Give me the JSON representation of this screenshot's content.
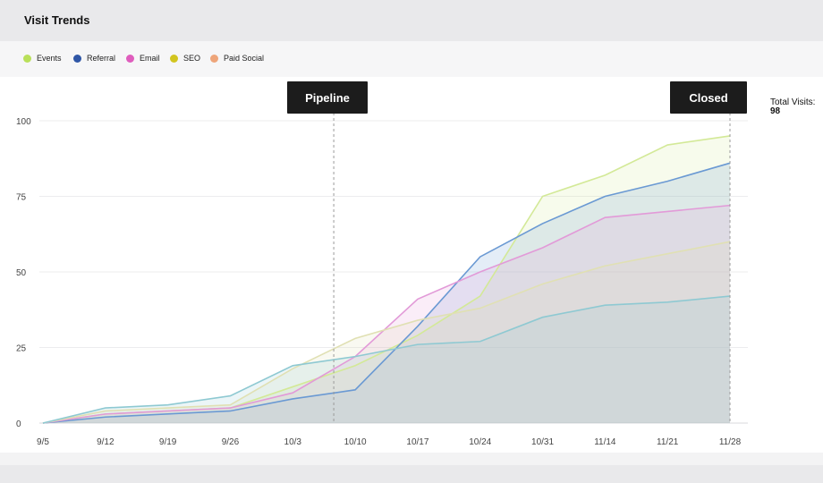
{
  "header": {
    "title": "Visit Trends"
  },
  "legend": [
    {
      "name": "Events",
      "color": "#b9e05a"
    },
    {
      "name": "Referral",
      "color": "#2f56a6"
    },
    {
      "name": "Email",
      "color": "#df5dbd"
    },
    {
      "name": "SEO",
      "color": "#d2c520"
    },
    {
      "name": "Paid Social",
      "color": "#eea57a"
    }
  ],
  "total": {
    "label": "Total Visits:",
    "value": "98"
  },
  "markers": [
    {
      "label": "Pipeline",
      "x": "10/10"
    },
    {
      "label": "Closed",
      "x": "11/28"
    }
  ],
  "chart_data": {
    "type": "area",
    "title": "Visit Trends",
    "categories": [
      "9/5",
      "9/12",
      "9/19",
      "9/26",
      "10/3",
      "10/10",
      "10/17",
      "10/24",
      "10/31",
      "11/14",
      "11/21",
      "11/28"
    ],
    "ylim": [
      0,
      100
    ],
    "yticks": [
      0,
      25,
      50,
      75,
      100
    ],
    "grid": true,
    "legend_position": "top-left",
    "series": [
      {
        "name": "Events",
        "color": "#d3e997",
        "values": [
          0,
          3,
          4,
          5,
          12,
          19,
          29,
          42,
          75,
          82,
          92,
          95
        ]
      },
      {
        "name": "Referral",
        "color": "#6a99d3",
        "values": [
          0,
          2,
          3,
          4,
          8,
          11,
          32,
          55,
          66,
          75,
          80,
          86
        ]
      },
      {
        "name": "Email",
        "color": "#e29ad8",
        "values": [
          0,
          3,
          4,
          5,
          10,
          22,
          41,
          50,
          58,
          68,
          70,
          72
        ]
      },
      {
        "name": "SEO",
        "color": "#e0e0b3",
        "values": [
          0,
          4,
          5,
          6,
          18,
          28,
          34,
          38,
          46,
          52,
          56,
          60
        ]
      },
      {
        "name": "Paid Social",
        "color": "#8ec9d2",
        "values": [
          0,
          5,
          6,
          9,
          19,
          22,
          26,
          27,
          35,
          39,
          40,
          42
        ]
      }
    ]
  }
}
